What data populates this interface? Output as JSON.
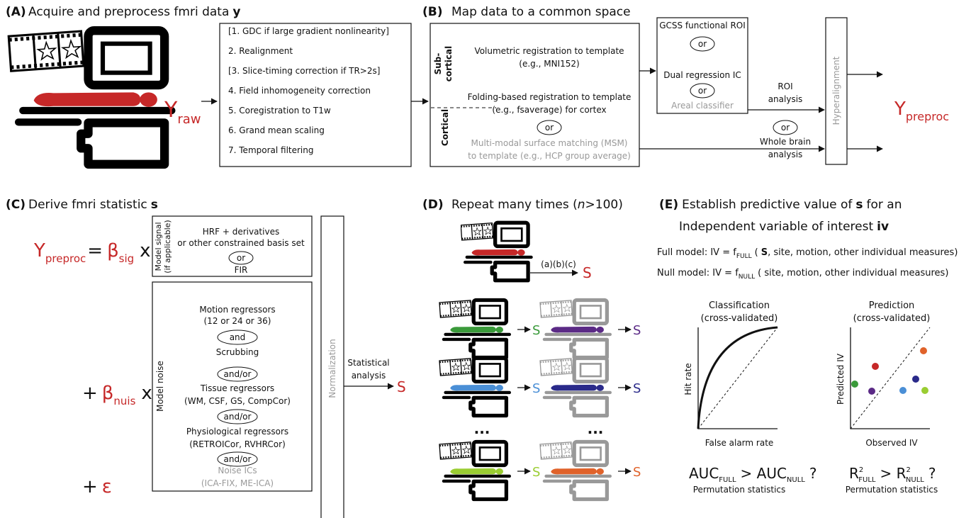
{
  "panel_a": {
    "label": "(A)",
    "title": "Acquire and preprocess fmri data",
    "title_symbol": "y",
    "y_symbol": "Y",
    "y_subscript": "raw",
    "steps": [
      "[1. GDC if large gradient nonlinearity]",
      "2. Realignment",
      "[3. Slice-timing correction if TR>2s]",
      "4. Field inhomogeneity correction",
      "5. Coregistration to T1w",
      "6. Grand mean scaling",
      "7. Temporal filtering"
    ]
  },
  "panel_b": {
    "label": "(B)",
    "title": "Map data to a common space",
    "subcortical_label": [
      "Sub-",
      "cortical"
    ],
    "subcortical_text": [
      "Volumetric registration  to template",
      "(e.g., MNI152)"
    ],
    "cortical_label": "Cortical",
    "cortical_text": [
      "Folding-based registration to template",
      "(e.g., fsaverage) for cortex"
    ],
    "cortical_or": "or",
    "msm_text": [
      "Multi-modal surface matching (MSM)",
      "to template (e.g., HCP group average)"
    ],
    "roi_options": [
      "GCSS functional ROI",
      "or",
      "Dual regression IC",
      "or",
      "Areal classifier"
    ],
    "roi_analysis": [
      "ROI",
      "analysis"
    ],
    "path_or": "or",
    "whole_brain_analysis": [
      "Whole brain",
      "analysis"
    ],
    "hyperalignment": "Hyperalignment",
    "output_symbol": "Y",
    "output_subscript": "preproc"
  },
  "panel_c": {
    "label": "(C)",
    "title": "Derive fmri statistic",
    "title_symbol": "s",
    "equation": {
      "y_symbol": "Y",
      "y_subscript": "preproc",
      "equals": "=",
      "beta": "β",
      "sig_subscript": "sig",
      "times": "x",
      "plus": "+",
      "nuis_subscript": "nuis",
      "epsilon": "ε"
    },
    "model_signal": {
      "label": [
        "Model signal",
        "(if applicable)"
      ],
      "lines": [
        "HRF + derivatives",
        "or other constrained basis set",
        "or",
        "FIR"
      ]
    },
    "model_noise": {
      "label": "Model noise",
      "lines": [
        "Motion regressors",
        "(12 or 24 or 36)",
        "and",
        "Scrubbing",
        "and/or",
        "Tissue regressors",
        "(WM, CSF, GS, CompCor)",
        "and/or",
        "Physiological regressors",
        "(RETROICor, RVHRCor)",
        "and/or",
        "Noise ICs",
        "(ICA-FIX, ME-ICA)"
      ]
    },
    "normalization": "Normalization",
    "statistical_analysis": [
      "Statistical",
      "analysis"
    ],
    "output": "S"
  },
  "panel_d": {
    "label": "(D)",
    "title": [
      "Repeat many times (",
      "n",
      ">100)"
    ],
    "steps": "(a)(b)(c)",
    "output": "S",
    "ellipsis": "..."
  },
  "panel_e": {
    "label": "(E)",
    "title": [
      "Establish predictive value of",
      "s",
      "for an"
    ],
    "title_line2": [
      "Independent variable of interest",
      "iv"
    ],
    "full_model": {
      "prefix": "Full model: IV = f",
      "subscript": "FULL",
      "open": "(",
      "symbol": "S",
      "rest": ", site, motion, other individual measures)"
    },
    "null_model": {
      "prefix": "Null model: IV = f",
      "subscript": "NULL",
      "rest": "( site, motion, other individual measures)"
    },
    "classification": {
      "title": [
        "Classification",
        "(cross-validated)"
      ],
      "x_label": "False alarm rate",
      "y_label": "Hit rate",
      "test": {
        "metric": "AUC",
        "sub_full": "FULL",
        "middle": "> AUC",
        "sub_null": "NULL",
        "end": "?"
      },
      "note": "Permutation statistics"
    },
    "prediction": {
      "title": [
        "Prediction",
        "(cross-validated)"
      ],
      "x_label": "Observed IV",
      "y_label": "Predicted IV",
      "test": {
        "metric": "R",
        "power": "2",
        "sub_full": "FULL",
        "middle": "> R",
        "sub_null": "NULL",
        "end": "?"
      },
      "note": "Permutation statistics"
    }
  }
}
